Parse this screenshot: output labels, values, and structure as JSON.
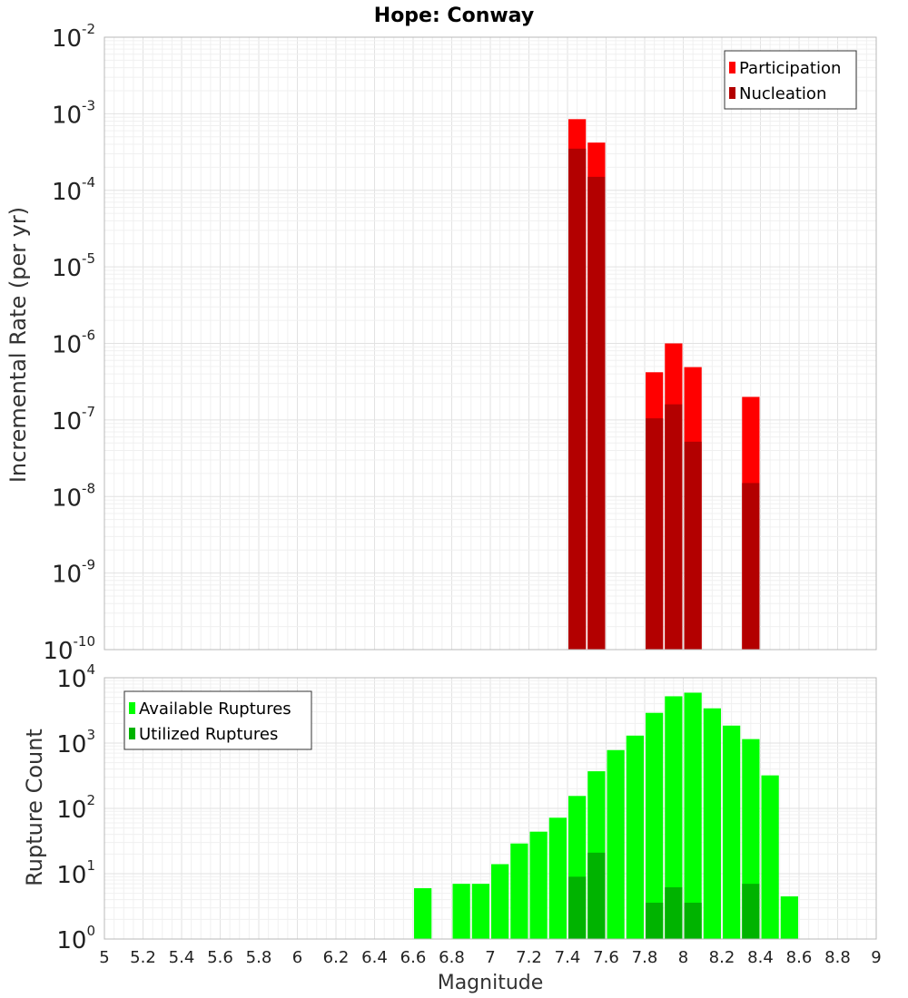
{
  "title": "Hope: Conway",
  "chart_data": [
    {
      "type": "bar",
      "ylabel": "Incremental Rate (per yr)",
      "yscale": "log",
      "ylim": [
        1e-10,
        0.01
      ],
      "xlim": [
        5,
        9
      ],
      "legend_position": "top-right",
      "grid": true,
      "series": [
        {
          "name": "Participation",
          "color": "#ff0000",
          "points": [
            {
              "x": 7.45,
              "y": 0.00085
            },
            {
              "x": 7.55,
              "y": 0.00042
            },
            {
              "x": 7.85,
              "y": 4.2e-07
            },
            {
              "x": 7.95,
              "y": 1e-06
            },
            {
              "x": 8.05,
              "y": 4.9e-07
            },
            {
              "x": 8.35,
              "y": 2e-07
            }
          ]
        },
        {
          "name": "Nucleation",
          "color": "#b30000",
          "points": [
            {
              "x": 7.45,
              "y": 0.00035
            },
            {
              "x": 7.55,
              "y": 0.00015
            },
            {
              "x": 7.85,
              "y": 1.05e-07
            },
            {
              "x": 7.95,
              "y": 1.6e-07
            },
            {
              "x": 8.05,
              "y": 5.2e-08
            },
            {
              "x": 8.35,
              "y": 1.5e-08
            }
          ]
        }
      ]
    },
    {
      "type": "bar",
      "ylabel": "Rupture Count",
      "xlabel": "Magnitude",
      "yscale": "log",
      "ylim": [
        1,
        10000
      ],
      "xlim": [
        5,
        9
      ],
      "legend_position": "top-left",
      "grid": true,
      "series": [
        {
          "name": "Available Ruptures",
          "color": "#00ff00",
          "points": [
            {
              "x": 6.65,
              "y": 6
            },
            {
              "x": 6.85,
              "y": 7
            },
            {
              "x": 6.95,
              "y": 7
            },
            {
              "x": 7.05,
              "y": 14
            },
            {
              "x": 7.15,
              "y": 29
            },
            {
              "x": 7.25,
              "y": 44
            },
            {
              "x": 7.35,
              "y": 72
            },
            {
              "x": 7.45,
              "y": 155
            },
            {
              "x": 7.55,
              "y": 370
            },
            {
              "x": 7.65,
              "y": 780
            },
            {
              "x": 7.75,
              "y": 1300
            },
            {
              "x": 7.85,
              "y": 2900
            },
            {
              "x": 7.95,
              "y": 5200
            },
            {
              "x": 8.05,
              "y": 5900
            },
            {
              "x": 8.15,
              "y": 3400
            },
            {
              "x": 8.25,
              "y": 1850
            },
            {
              "x": 8.35,
              "y": 1150
            },
            {
              "x": 8.45,
              "y": 320
            },
            {
              "x": 8.55,
              "y": 4.5
            }
          ]
        },
        {
          "name": "Utilized Ruptures",
          "color": "#00b300",
          "points": [
            {
              "x": 7.45,
              "y": 9
            },
            {
              "x": 7.55,
              "y": 21
            },
            {
              "x": 7.85,
              "y": 3.6
            },
            {
              "x": 7.95,
              "y": 6.2
            },
            {
              "x": 8.05,
              "y": 3.6
            },
            {
              "x": 8.35,
              "y": 7
            }
          ]
        }
      ]
    }
  ],
  "x_ticks": [
    "5",
    "5.2",
    "5.4",
    "5.6",
    "5.8",
    "6",
    "6.2",
    "6.4",
    "6.6",
    "6.8",
    "7",
    "7.2",
    "7.4",
    "7.6",
    "7.8",
    "8",
    "8.2",
    "8.4",
    "8.6",
    "8.8",
    "9"
  ],
  "top_y_ticks": [
    {
      "base": "10",
      "exp": "-2"
    },
    {
      "base": "10",
      "exp": "-3"
    },
    {
      "base": "10",
      "exp": "-4"
    },
    {
      "base": "10",
      "exp": "-5"
    },
    {
      "base": "10",
      "exp": "-6"
    },
    {
      "base": "10",
      "exp": "-7"
    },
    {
      "base": "10",
      "exp": "-8"
    },
    {
      "base": "10",
      "exp": "-9"
    },
    {
      "base": "10",
      "exp": "-10"
    }
  ],
  "bottom_y_ticks": [
    {
      "base": "10",
      "exp": "4"
    },
    {
      "base": "10",
      "exp": "3"
    },
    {
      "base": "10",
      "exp": "2"
    },
    {
      "base": "10",
      "exp": "1"
    },
    {
      "base": "10",
      "exp": "0"
    }
  ]
}
